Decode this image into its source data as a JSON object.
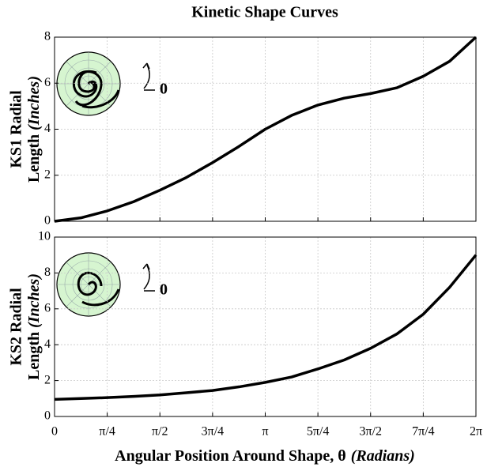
{
  "chart_data": [
    {
      "type": "line",
      "title": "Kinetic Shape Curves",
      "ylabel": [
        "KS1 Radial",
        "Length"
      ],
      "ylabel_unit": "(Inches)",
      "inset_label": "0",
      "x": [
        0,
        0.3927,
        0.7854,
        1.1781,
        1.5708,
        1.9635,
        2.3562,
        2.7489,
        3.1416,
        3.5343,
        3.927,
        4.3197,
        4.7124,
        5.1051,
        5.4978,
        5.8905,
        6.2832
      ],
      "series": [
        {
          "color": "#000000",
          "values": [
            0,
            0.15,
            0.45,
            0.85,
            1.35,
            1.9,
            2.55,
            3.25,
            4.0,
            4.6,
            5.05,
            5.35,
            5.55,
            5.8,
            6.3,
            6.95,
            8.0
          ]
        }
      ],
      "xlim": [
        0,
        6.2832
      ],
      "ylim": [
        0,
        8
      ],
      "yticks": [
        0,
        2,
        4,
        6,
        8
      ],
      "grid": true
    },
    {
      "type": "line",
      "ylabel": [
        "KS2 Radial",
        "Length"
      ],
      "ylabel_unit": "(Inches)",
      "inset_label": "0",
      "xlabel": "Angular Position Around Shape, θ",
      "xlabel_unit": "(Radians)",
      "x": [
        0,
        0.3927,
        0.7854,
        1.1781,
        1.5708,
        1.9635,
        2.3562,
        2.7489,
        3.1416,
        3.5343,
        3.927,
        4.3197,
        4.7124,
        5.1051,
        5.4978,
        5.8905,
        6.2832
      ],
      "series": [
        {
          "color": "#000000",
          "values": [
            0.95,
            1.0,
            1.05,
            1.12,
            1.2,
            1.32,
            1.45,
            1.65,
            1.9,
            2.2,
            2.65,
            3.15,
            3.8,
            4.6,
            5.7,
            7.2,
            9.0
          ]
        }
      ],
      "xlim": [
        0,
        6.2832
      ],
      "ylim": [
        0,
        10
      ],
      "yticks": [
        0,
        2,
        4,
        6,
        8,
        10
      ],
      "xticks": [
        0,
        {
          "value": 0.7854,
          "label": "π/4"
        },
        {
          "value": 1.5708,
          "label": "π/2"
        },
        {
          "value": 2.3562,
          "label": "3π/4"
        },
        {
          "value": 3.1416,
          "label": "π"
        },
        {
          "value": 3.927,
          "label": "5π/4"
        },
        {
          "value": 4.7124,
          "label": "3π/2"
        },
        {
          "value": 5.4978,
          "label": "7π/4"
        },
        {
          "value": 6.2832,
          "label": "2π"
        }
      ],
      "grid": true
    }
  ]
}
